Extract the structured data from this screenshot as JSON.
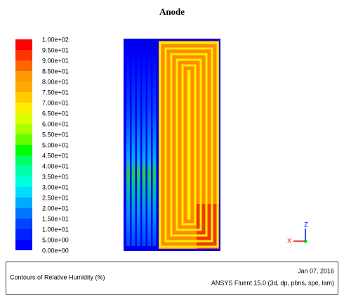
{
  "title": "Anode",
  "legend": {
    "labels": [
      "1.00e+02",
      "9.50e+01",
      "9.00e+01",
      "8.50e+01",
      "8.00e+01",
      "7.50e+01",
      "7.00e+01",
      "6.50e+01",
      "6.00e+01",
      "5.50e+01",
      "5.00e+01",
      "4.50e+01",
      "4.00e+01",
      "3.50e+01",
      "3.00e+01",
      "2.50e+01",
      "2.00e+01",
      "1.50e+01",
      "1.00e+01",
      "5.00e+00",
      "0.00e+00"
    ],
    "colors": [
      "#ff0000",
      "#ff3300",
      "#ff6600",
      "#ff9900",
      "#ffaa00",
      "#ffcc00",
      "#ffee00",
      "#ddff00",
      "#aaff00",
      "#66ff00",
      "#00ff00",
      "#00ff66",
      "#00ffaa",
      "#00ffdd",
      "#00ddff",
      "#00aaff",
      "#0077ff",
      "#0044ff",
      "#0022ff",
      "#0000ff"
    ]
  },
  "triad": {
    "z": "Z",
    "x": "X"
  },
  "footer": {
    "caption": "Contours of Relative Humidity (%)",
    "date": "Jan 07, 2016",
    "software": "ANSYS Fluent 15.0 (3d, dp, pbns, spe, lam)"
  }
}
